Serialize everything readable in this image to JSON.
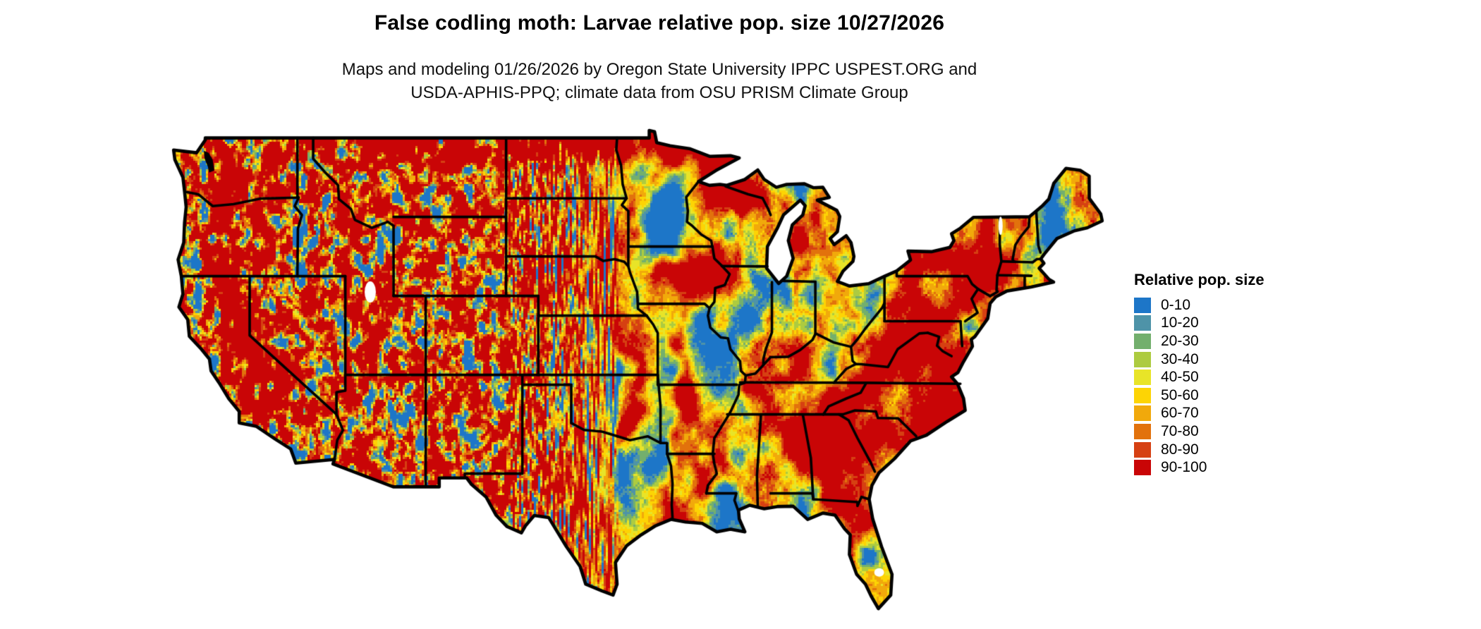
{
  "header": {
    "title": "False codling moth: Larvae relative pop. size 10/27/2026",
    "subtitle_line1": "Maps and modeling 01/26/2026 by Oregon State University IPPC USPEST.ORG and",
    "subtitle_line2": "USDA-APHIS-PPQ; climate data from OSU PRISM Climate Group"
  },
  "legend": {
    "title": "Relative pop. size",
    "items": [
      {
        "label": "0-10",
        "color": "#1D76C8"
      },
      {
        "label": "10-20",
        "color": "#4E93A8"
      },
      {
        "label": "20-30",
        "color": "#73AF6D"
      },
      {
        "label": "30-40",
        "color": "#ADCB40"
      },
      {
        "label": "40-50",
        "color": "#E8E428"
      },
      {
        "label": "50-60",
        "color": "#FDD404"
      },
      {
        "label": "60-70",
        "color": "#F1A90B"
      },
      {
        "label": "70-80",
        "color": "#E2720C"
      },
      {
        "label": "80-90",
        "color": "#D64012"
      },
      {
        "label": "90-100",
        "color": "#C90506"
      }
    ]
  },
  "map": {
    "region": "Contiguous United States",
    "type": "raster-choropleth",
    "background_color": "#ffffff",
    "border_color": "#000000",
    "water_color": "#ffffff"
  }
}
